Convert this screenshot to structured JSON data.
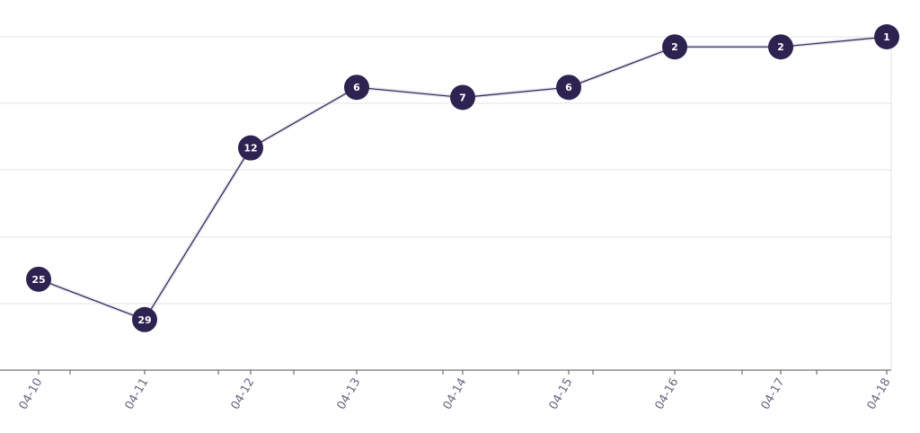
{
  "chart_data": {
    "type": "line",
    "x": [
      "04-10",
      "04-11",
      "04-12",
      "04-13",
      "04-14",
      "04-15",
      "04-16",
      "04-17",
      "04-18"
    ],
    "series": [
      {
        "values": [
          25,
          29,
          12,
          6,
          7,
          6,
          2,
          2,
          1
        ]
      }
    ],
    "y_axis_inverted": true,
    "ylim": [
      1,
      34
    ],
    "grid": true,
    "legend": "none",
    "colors": {
      "line": "#2d2350",
      "marker": "#2d2350",
      "marker_text": "#ffffff",
      "grid": "#e3e3e3",
      "axis": "#555555",
      "tick_text": "#6a6580"
    }
  }
}
